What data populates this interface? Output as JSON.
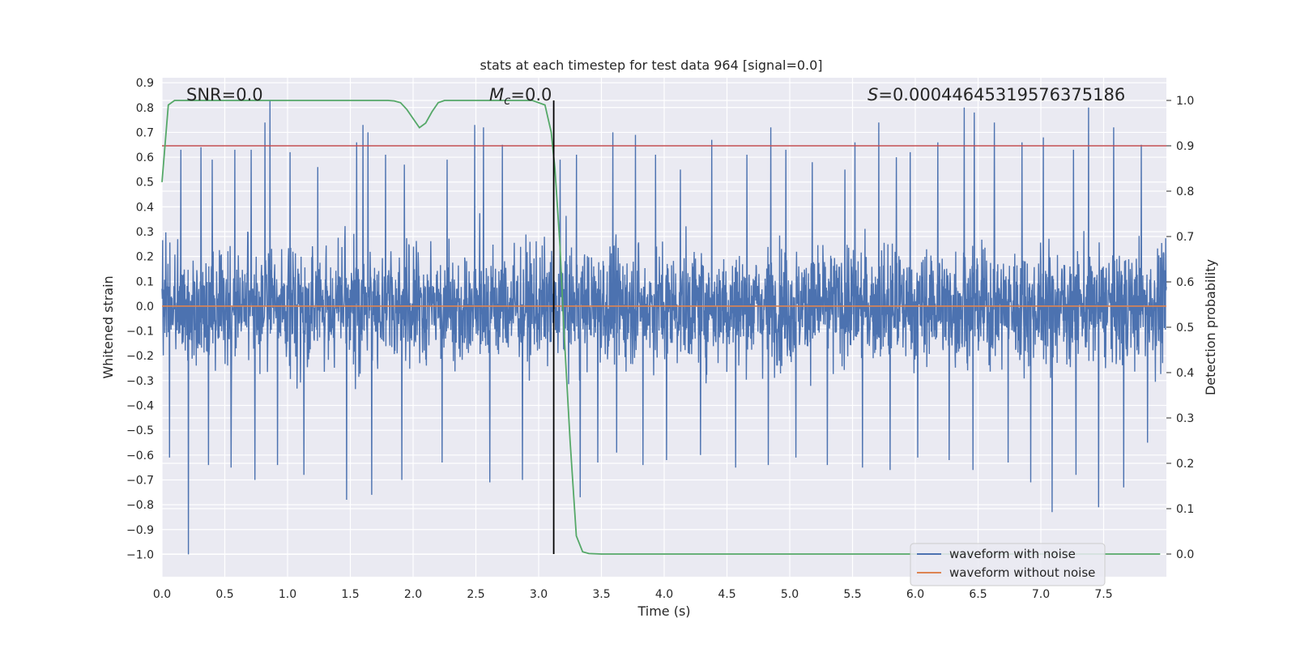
{
  "chart_data": {
    "type": "line",
    "title": "stats at each timestep for test data 964 [signal=0.0]",
    "xlabel": "Time (s)",
    "ylabel": "Whitened strain",
    "y2label": "Detection probability",
    "xlim": [
      0.0,
      8.0
    ],
    "ylim": [
      -1.09,
      0.92
    ],
    "y2lim": [
      -0.05,
      1.05
    ],
    "xticks": [
      0.0,
      0.5,
      1.0,
      1.5,
      2.0,
      2.5,
      3.0,
      3.5,
      4.0,
      4.5,
      5.0,
      5.5,
      6.0,
      6.5,
      7.0,
      7.5
    ],
    "xtick_labels": [
      "0.0",
      "0.5",
      "1.0",
      "1.5",
      "2.0",
      "2.5",
      "3.0",
      "3.5",
      "4.0",
      "4.5",
      "5.0",
      "5.5",
      "6.0",
      "6.5",
      "7.0",
      "7.5"
    ],
    "yticks": [
      0.9,
      0.8,
      0.7,
      0.6,
      0.5,
      0.4,
      0.3,
      0.2,
      0.1,
      0.0,
      -0.1,
      -0.2,
      -0.3,
      -0.4,
      -0.5,
      -0.6,
      -0.7,
      -0.8,
      -0.9,
      -1.0
    ],
    "ytick_labels": [
      "0.9",
      "0.8",
      "0.7",
      "0.6",
      "0.5",
      "0.4",
      "0.3",
      "0.2",
      "0.1",
      "0.0",
      "−0.1",
      "−0.2",
      "−0.3",
      "−0.4",
      "−0.5",
      "−0.6",
      "−0.7",
      "−0.8",
      "−0.9",
      "−1.0"
    ],
    "y2ticks": [
      1.0,
      0.9,
      0.8,
      0.7,
      0.6,
      0.5,
      0.4,
      0.3,
      0.2,
      0.1,
      0.0
    ],
    "y2tick_labels": [
      "1.0",
      "0.9",
      "0.8",
      "0.7",
      "0.6",
      "0.5",
      "0.4",
      "0.3",
      "0.2",
      "0.1",
      "0.0"
    ],
    "grid": true,
    "legend_position": "bottom-right",
    "annotations": {
      "snr": "SNR=0.0",
      "mc_symbol": "M",
      "mc_sub": "c",
      "mc_value": "=0.0",
      "s_symbol": "S",
      "s_value": "=0.00044645319576375186"
    },
    "series": [
      {
        "name": "waveform with noise",
        "color": "#4c72b0",
        "axis": "left",
        "description": "noise-only whitened strain, amplitude mostly within ±0.3 with spikes up to about 0.83 and down to about -1.0",
        "spike_times": [
          0.15,
          0.21,
          0.31,
          0.4,
          0.58,
          0.71,
          0.82,
          0.86,
          1.02,
          1.24,
          1.47,
          1.55,
          1.6,
          1.64,
          1.78,
          1.93,
          2.27,
          2.49,
          2.56,
          2.71,
          2.87,
          3.17,
          3.3,
          3.59,
          3.77,
          3.93,
          4.13,
          4.38,
          4.66,
          4.85,
          4.97,
          5.18,
          5.44,
          5.52,
          5.71,
          5.85,
          5.96,
          6.18,
          6.39,
          6.47,
          6.63,
          6.85,
          7.02,
          7.26,
          7.38,
          7.58,
          7.8
        ],
        "spike_values": [
          0.63,
          0.7,
          0.64,
          0.59,
          0.63,
          0.63,
          0.74,
          0.83,
          0.62,
          0.56,
          0.77,
          0.66,
          0.73,
          0.7,
          0.61,
          0.57,
          0.59,
          0.73,
          0.72,
          0.65,
          0.69,
          0.59,
          0.61,
          0.7,
          0.69,
          0.61,
          0.55,
          0.67,
          0.61,
          0.72,
          0.63,
          0.58,
          0.55,
          0.66,
          0.74,
          0.6,
          0.62,
          0.66,
          0.8,
          0.78,
          0.74,
          0.66,
          0.68,
          0.63,
          0.8,
          0.72,
          0.65
        ],
        "neg_spike_times": [
          0.06,
          0.21,
          0.37,
          0.55,
          0.74,
          0.92,
          1.13,
          1.47,
          1.67,
          1.91,
          2.23,
          2.61,
          2.87,
          3.33,
          3.47,
          3.62,
          3.83,
          4.02,
          4.29,
          4.57,
          4.83,
          5.05,
          5.3,
          5.58,
          5.8,
          6.02,
          6.27,
          6.46,
          6.74,
          6.92,
          7.09,
          7.28,
          7.46,
          7.66,
          7.85
        ],
        "neg_spike_values": [
          -0.61,
          -1.0,
          -0.64,
          -0.65,
          -0.7,
          -0.64,
          -0.68,
          -0.78,
          -0.76,
          -0.7,
          -0.63,
          -0.71,
          -0.7,
          -0.77,
          -0.63,
          -0.59,
          -0.64,
          -0.62,
          -0.6,
          -0.65,
          -0.64,
          -0.61,
          -0.64,
          -0.65,
          -0.66,
          -0.61,
          -0.62,
          -0.66,
          -0.63,
          -0.71,
          -0.83,
          -0.68,
          -0.81,
          -0.73,
          -0.55
        ]
      },
      {
        "name": "waveform without noise",
        "color": "#dd8452",
        "axis": "left",
        "x": [
          0.0,
          8.0
        ],
        "values": [
          0.0,
          0.0
        ]
      },
      {
        "name": "",
        "color": "#55a868",
        "axis": "right",
        "x": [
          0.0,
          0.05,
          0.1,
          0.2,
          0.4,
          0.8,
          1.2,
          1.6,
          1.75,
          1.8,
          1.85,
          1.9,
          1.95,
          2.0,
          2.05,
          2.1,
          2.15,
          2.2,
          2.25,
          2.4,
          2.6,
          2.8,
          2.95,
          3.05,
          3.1,
          3.13,
          3.17,
          3.2,
          3.25,
          3.3,
          3.35,
          3.4,
          3.5,
          4.0,
          5.0,
          6.0,
          7.0,
          7.95
        ],
        "values": [
          0.82,
          0.99,
          1.0,
          1.0,
          1.0,
          1.0,
          1.0,
          1.0,
          1.0,
          1.0,
          0.999,
          0.995,
          0.98,
          0.96,
          0.94,
          0.95,
          0.975,
          0.995,
          1.0,
          1.0,
          1.0,
          1.0,
          1.0,
          0.99,
          0.93,
          0.85,
          0.68,
          0.5,
          0.25,
          0.04,
          0.005,
          0.001,
          0.0,
          0.0,
          0.0,
          0.0,
          0.0,
          0.0
        ]
      }
    ],
    "hlines": [
      {
        "axis": "right",
        "value": 0.9,
        "color": "#c44e52"
      }
    ],
    "vlines": [
      {
        "x": 3.12,
        "color": "#000000"
      }
    ],
    "legend": [
      "waveform with noise",
      "waveform without noise"
    ]
  }
}
